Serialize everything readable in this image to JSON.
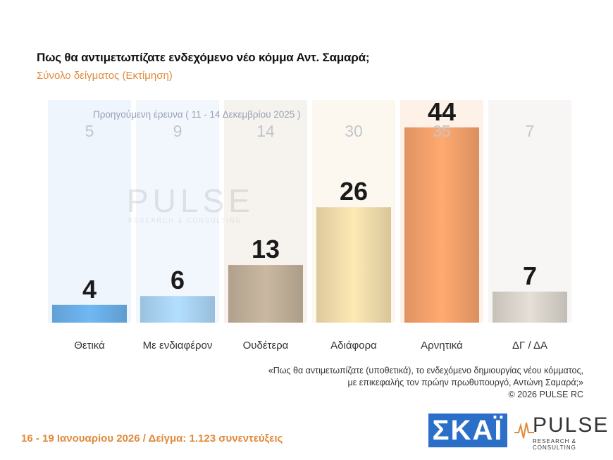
{
  "title": "Πως θα αντιμετωπίζατε ενδεχόμενο νέο κόμμα Αντ. Σαμαρά;",
  "subtitle": "Σύνολο δείγματος  (Εκτίμηση)",
  "previous_label": "Προηγούμενη έρευνα ( 11 - 14 Δεκεμβρίου 2025 )",
  "watermark": {
    "name": "PULSE",
    "tagline": "RESEARCH & CONSULTING"
  },
  "chart_data": {
    "type": "bar",
    "categories": [
      "Θετικά",
      "Με ενδιαφέρον",
      "Ουδέτερα",
      "Αδιάφορα",
      "Αρνητικά",
      "ΔΓ / ΔΑ"
    ],
    "values": [
      4,
      6,
      13,
      26,
      44,
      7
    ],
    "previous_values": [
      5,
      9,
      14,
      30,
      35,
      7
    ],
    "ylim": [
      0,
      60
    ],
    "grid": false,
    "colors": {
      "bars": [
        "#6aaee6",
        "#a9d2f3",
        "#bfae98",
        "#f0dcaa",
        "#f2a06a",
        "#d8d2ca"
      ],
      "backgrounds": [
        "#eef5fc",
        "#f1f7fd",
        "#f6f2ee",
        "#fcf8ef",
        "#fdf1e8",
        "#f8f6f4"
      ],
      "value_text": "#1a1a1a",
      "previous_text": "#c2c6cc",
      "category_text": "#333333"
    }
  },
  "note_lines": [
    "«Πως θα αντιμετωπίζατε (υποθετικά), το ενδεχόμενο δημιουργίας νέου κόμματος,",
    "με επικεφαλής τον πρώην πρωθυπουργό, Αντώνη Σαμαρά;»",
    "©  2026  PULSE RC"
  ],
  "footer": {
    "date_sample": "16 - 19 Ιανουαρίου 2026  /  Δείγμα:  1.123 συνεντεύξεις",
    "skai_logo": "ΣΚΑΪ",
    "pulse_logo": "PULSE",
    "pulse_tagline": "RESEARCH & CONSULTING"
  }
}
